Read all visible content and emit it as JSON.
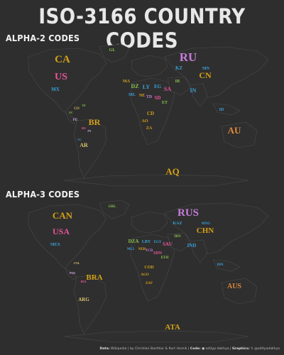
{
  "title": "ISO-3166 COUNTRY CODES",
  "sections": [
    {
      "heading": "ALPHA-2 CODES",
      "labels": [
        {
          "text": "CA",
          "color": "#d4a017",
          "size": 15
        },
        {
          "text": "US",
          "color": "#e6559a",
          "size": 14
        },
        {
          "text": "MX",
          "color": "#3aa0d8",
          "size": 7
        },
        {
          "text": "BR",
          "color": "#d4a017",
          "size": 12
        },
        {
          "text": "AR",
          "color": "#d9c36a",
          "size": 8
        },
        {
          "text": "CO",
          "color": "#d9c36a",
          "size": 5
        },
        {
          "text": "PE",
          "color": "#c9a6e0",
          "size": 5
        },
        {
          "text": "BO",
          "color": "#e6559a",
          "size": 4
        },
        {
          "text": "PY",
          "color": "#c9a6e0",
          "size": 4
        },
        {
          "text": "CL",
          "color": "#3aa0d8",
          "size": 4
        },
        {
          "text": "VE",
          "color": "#8bc34a",
          "size": 4
        },
        {
          "text": "EC",
          "color": "#8bc34a",
          "size": 4
        },
        {
          "text": "GL",
          "color": "#8bc34a",
          "size": 6
        },
        {
          "text": "RU",
          "color": "#c77ddb",
          "size": 17
        },
        {
          "text": "KZ",
          "color": "#3aa0d8",
          "size": 7
        },
        {
          "text": "CN",
          "color": "#d4a017",
          "size": 12
        },
        {
          "text": "MN",
          "color": "#3aa0d8",
          "size": 6
        },
        {
          "text": "IN",
          "color": "#3aa0d8",
          "size": 8
        },
        {
          "text": "ID",
          "color": "#3aa0d8",
          "size": 6
        },
        {
          "text": "AU",
          "color": "#e0893c",
          "size": 13
        },
        {
          "text": "DZ",
          "color": "#8bc34a",
          "size": 8
        },
        {
          "text": "LY",
          "color": "#3aa0d8",
          "size": 8
        },
        {
          "text": "EG",
          "color": "#3aa0d8",
          "size": 7
        },
        {
          "text": "SD",
          "color": "#e6559a",
          "size": 7
        },
        {
          "text": "ML",
          "color": "#3aa0d8",
          "size": 6
        },
        {
          "text": "NE",
          "color": "#d4a017",
          "size": 6
        },
        {
          "text": "TD",
          "color": "#c77ddb",
          "size": 6
        },
        {
          "text": "CD",
          "color": "#d4a017",
          "size": 7
        },
        {
          "text": "AO",
          "color": "#d4a017",
          "size": 6
        },
        {
          "text": "ZA",
          "color": "#d4a017",
          "size": 6
        },
        {
          "text": "SA",
          "color": "#e6559a",
          "size": 8
        },
        {
          "text": "IR",
          "color": "#8bc34a",
          "size": 6
        },
        {
          "text": "MA",
          "color": "#d4a017",
          "size": 6
        },
        {
          "text": "ET",
          "color": "#8bc34a",
          "size": 6
        },
        {
          "text": "AQ",
          "color": "#d4a017",
          "size": 13
        }
      ]
    },
    {
      "heading": "ALPHA-3 CODES",
      "labels": [
        {
          "text": "CAN",
          "color": "#d4a017",
          "size": 13
        },
        {
          "text": "USA",
          "color": "#e6559a",
          "size": 12
        },
        {
          "text": "MEX",
          "color": "#3aa0d8",
          "size": 6
        },
        {
          "text": "BRA",
          "color": "#d4a017",
          "size": 11
        },
        {
          "text": "ARG",
          "color": "#d9c36a",
          "size": 7
        },
        {
          "text": "COL",
          "color": "#d9c36a",
          "size": 4
        },
        {
          "text": "PER",
          "color": "#c9a6e0",
          "size": 4
        },
        {
          "text": "BOL",
          "color": "#e6559a",
          "size": 4
        },
        {
          "text": "GRL",
          "color": "#8bc34a",
          "size": 5
        },
        {
          "text": "RUS",
          "color": "#c77ddb",
          "size": 15
        },
        {
          "text": "KAZ",
          "color": "#3aa0d8",
          "size": 6
        },
        {
          "text": "CHN",
          "color": "#d4a017",
          "size": 11
        },
        {
          "text": "MNG",
          "color": "#3aa0d8",
          "size": 5
        },
        {
          "text": "IND",
          "color": "#3aa0d8",
          "size": 7
        },
        {
          "text": "IDN",
          "color": "#3aa0d8",
          "size": 5
        },
        {
          "text": "AUS",
          "color": "#e0893c",
          "size": 10
        },
        {
          "text": "DZA",
          "color": "#8bc34a",
          "size": 7
        },
        {
          "text": "LBY",
          "color": "#3aa0d8",
          "size": 6
        },
        {
          "text": "EGY",
          "color": "#3aa0d8",
          "size": 5
        },
        {
          "text": "SDN",
          "color": "#e6559a",
          "size": 6
        },
        {
          "text": "MLI",
          "color": "#3aa0d8",
          "size": 5
        },
        {
          "text": "NER",
          "color": "#d4a017",
          "size": 5
        },
        {
          "text": "TCD",
          "color": "#c77ddb",
          "size": 5
        },
        {
          "text": "COD",
          "color": "#d4a017",
          "size": 6
        },
        {
          "text": "AGO",
          "color": "#d4a017",
          "size": 5
        },
        {
          "text": "ZAF",
          "color": "#d4a017",
          "size": 5
        },
        {
          "text": "SAU",
          "color": "#e6559a",
          "size": 7
        },
        {
          "text": "IRN",
          "color": "#8bc34a",
          "size": 5
        },
        {
          "text": "ETH",
          "color": "#8bc34a",
          "size": 5
        },
        {
          "text": "ATA",
          "color": "#d4a017",
          "size": 11
        }
      ]
    }
  ],
  "footer": {
    "data_label": "Data:",
    "data_text": "Wikipedia | by Christian Bachtiar & Kurt Hornik",
    "code_label": "Code:",
    "code_text": "adityp-dakhya",
    "graphics_label": "Graphics:",
    "graphics_text": "@adityadakhya"
  }
}
